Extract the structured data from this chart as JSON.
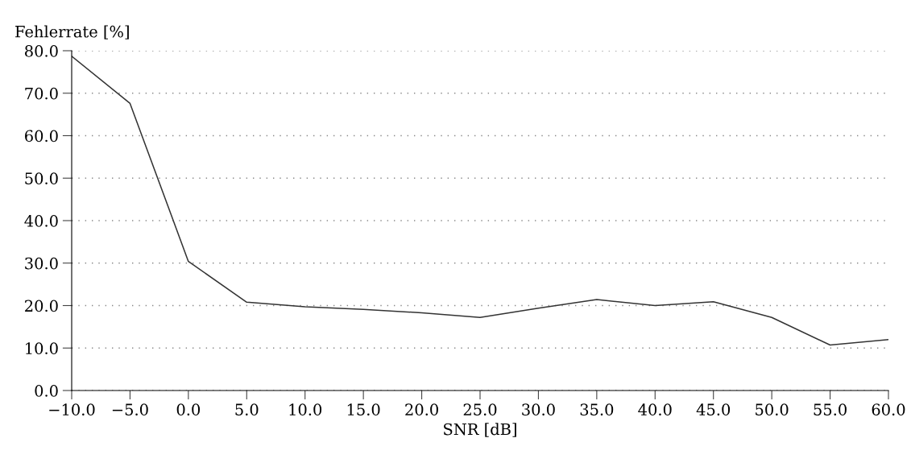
{
  "chart_data": {
    "type": "line",
    "xlabel": "SNR [dB]",
    "ylabel": "Fehlerrate [%]",
    "x": [
      -10,
      -5,
      0,
      5,
      10,
      15,
      20,
      25,
      30,
      35,
      40,
      45,
      50,
      55,
      60
    ],
    "series": [
      {
        "color": "#333333",
        "values": [
          78.7,
          67.6,
          30.4,
          20.8,
          19.7,
          19.1,
          18.3,
          17.2,
          19.4,
          21.4,
          20.0,
          20.9,
          17.2,
          10.7,
          12.0
        ]
      }
    ],
    "xlim": [
      -10,
      60
    ],
    "xticks": [
      {
        "value": -10,
        "label": "−10.0"
      },
      {
        "value": -5,
        "label": "−5.0"
      },
      {
        "value": 0,
        "label": "0.0"
      },
      {
        "value": 5,
        "label": "5.0"
      },
      {
        "value": 10,
        "label": "10.0"
      },
      {
        "value": 15,
        "label": "15.0"
      },
      {
        "value": 20,
        "label": "20.0"
      },
      {
        "value": 25,
        "label": "25.0"
      },
      {
        "value": 30,
        "label": "30.0"
      },
      {
        "value": 35,
        "label": "35.0"
      },
      {
        "value": 40,
        "label": "40.0"
      },
      {
        "value": 45,
        "label": "45.0"
      },
      {
        "value": 50,
        "label": "50.0"
      },
      {
        "value": 55,
        "label": "55.0"
      },
      {
        "value": 60,
        "label": "60.0"
      }
    ],
    "ylim": [
      0,
      80
    ],
    "yticks": [
      {
        "value": 0,
        "label": "0.0"
      },
      {
        "value": 10,
        "label": "10.0"
      },
      {
        "value": 20,
        "label": "20.0"
      },
      {
        "value": 30,
        "label": "30.0"
      },
      {
        "value": 40,
        "label": "40.0"
      },
      {
        "value": 50,
        "label": "50.0"
      },
      {
        "value": 60,
        "label": "60.0"
      },
      {
        "value": 70,
        "label": "70.0"
      },
      {
        "value": 80,
        "label": "80.0"
      }
    ],
    "grid": "y",
    "marker": "none",
    "line_style": "solid"
  }
}
